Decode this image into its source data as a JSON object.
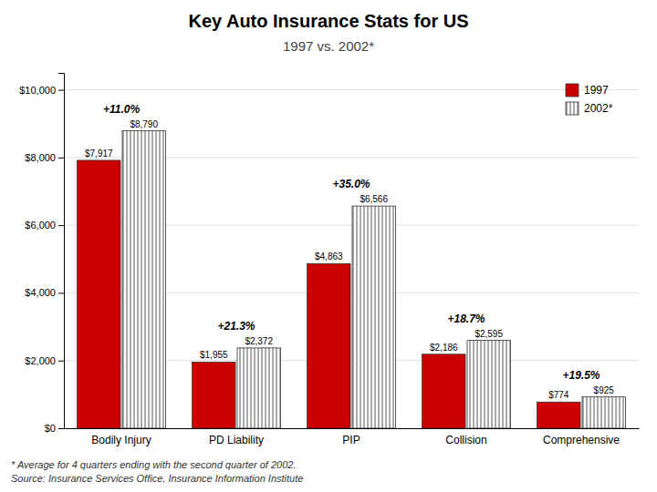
{
  "chart_data": {
    "type": "bar",
    "title": "Key Auto Insurance Stats for US",
    "subtitle": "1997 vs. 2002*",
    "categories": [
      "Bodily Injury",
      "PD Liability",
      "PIP",
      "Collision",
      "Comprehensive"
    ],
    "series": [
      {
        "name": "1997",
        "color": "#cc0000",
        "values": [
          7917,
          1955,
          4863,
          2186,
          774
        ],
        "value_labels": [
          "$7,917",
          "$1,955",
          "$4,863",
          "$2,186",
          "$774"
        ]
      },
      {
        "name": "2002*",
        "color": "#ffffff",
        "values": [
          8790,
          2372,
          6566,
          2595,
          925
        ],
        "value_labels": [
          "$8,790",
          "$2,372",
          "$6,566",
          "$2,595",
          "$925"
        ]
      }
    ],
    "annotations": [
      "+11.0%",
      "+21.3%",
      "+35.0%",
      "+18.7%",
      "+19.5%"
    ],
    "footnotes": [
      "* Average for 4 quarters ending with the second quarter of 2002.",
      "Source: Insurance Services Office, Insurance Information Institute"
    ],
    "ylim": [
      0,
      10500
    ],
    "yticks": [
      {
        "value": 0,
        "label": "$0"
      },
      {
        "value": 2000,
        "label": "$2,000"
      },
      {
        "value": 4000,
        "label": "$4,000"
      },
      {
        "value": 6000,
        "label": "$6,000"
      },
      {
        "value": 8000,
        "label": "$8,000"
      },
      {
        "value": 10000,
        "label": "$10,000"
      }
    ],
    "grid": true,
    "legend": "upper right",
    "data_labels": true
  }
}
